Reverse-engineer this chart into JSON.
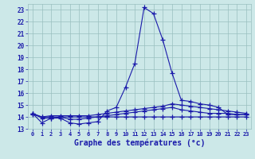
{
  "title": "Graphe des températures (°c)",
  "x_labels": [
    "0",
    "1",
    "2",
    "3",
    "4",
    "5",
    "6",
    "7",
    "8",
    "9",
    "10",
    "11",
    "12",
    "13",
    "14",
    "15",
    "16",
    "17",
    "18",
    "19",
    "20",
    "21",
    "22",
    "23"
  ],
  "hours": [
    0,
    1,
    2,
    3,
    4,
    5,
    6,
    7,
    8,
    9,
    10,
    11,
    12,
    13,
    14,
    15,
    16,
    17,
    18,
    19,
    20,
    21,
    22,
    23
  ],
  "line_main": [
    14.3,
    13.5,
    13.9,
    13.9,
    13.5,
    13.4,
    13.5,
    13.6,
    14.5,
    14.8,
    16.5,
    18.5,
    23.2,
    22.7,
    20.5,
    17.7,
    15.4,
    15.3,
    15.1,
    15.0,
    14.8,
    14.2,
    14.2,
    14.2
  ],
  "line_flat1": [
    14.2,
    14.0,
    14.0,
    14.0,
    14.0,
    14.0,
    14.0,
    14.0,
    14.0,
    14.0,
    14.0,
    14.0,
    14.0,
    14.0,
    14.0,
    14.0,
    14.0,
    14.0,
    14.0,
    14.0,
    14.0,
    14.0,
    14.0,
    14.0
  ],
  "line_flat2": [
    14.3,
    13.9,
    13.9,
    14.0,
    13.8,
    13.8,
    13.9,
    14.0,
    14.1,
    14.2,
    14.3,
    14.4,
    14.5,
    14.6,
    14.7,
    14.8,
    14.6,
    14.5,
    14.4,
    14.3,
    14.3,
    14.3,
    14.2,
    14.2
  ],
  "line_flat3": [
    14.3,
    14.0,
    14.1,
    14.1,
    14.1,
    14.1,
    14.1,
    14.2,
    14.3,
    14.4,
    14.5,
    14.6,
    14.7,
    14.8,
    14.9,
    15.1,
    15.0,
    14.9,
    14.8,
    14.7,
    14.6,
    14.5,
    14.4,
    14.3
  ],
  "line_color": "#1a1aaa",
  "bg_color": "#cce8e8",
  "grid_color": "#99bfbf",
  "ylim": [
    13,
    23.5
  ],
  "yticks": [
    13,
    14,
    15,
    16,
    17,
    18,
    19,
    20,
    21,
    22,
    23
  ],
  "marker": "+",
  "marker_size": 4,
  "linewidth": 0.8
}
